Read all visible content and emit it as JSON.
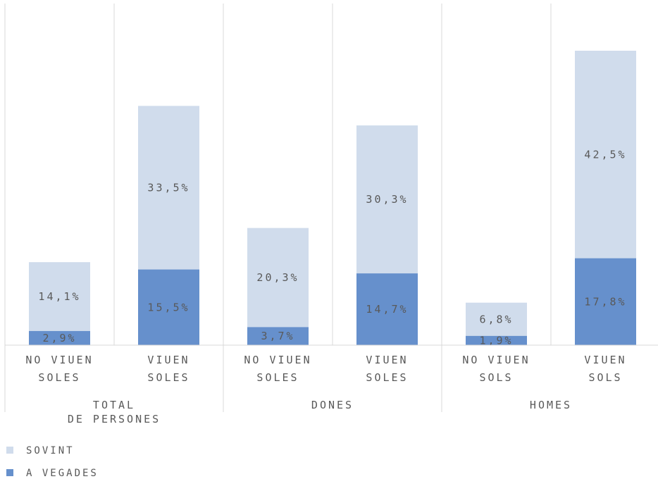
{
  "chart_data": {
    "type": "bar",
    "stacked": true,
    "groups": [
      {
        "label_lines": [
          "TOTAL",
          "DE PERSONES"
        ],
        "categories": [
          {
            "label_lines": [
              "NO VIUEN",
              "SOLES"
            ],
            "a_vegades": 2.9,
            "sovint": 14.1,
            "a_vegades_label": "2,9%",
            "sovint_label": "14,1%"
          },
          {
            "label_lines": [
              "VIUEN",
              "SOLES"
            ],
            "a_vegades": 15.5,
            "sovint": 33.5,
            "a_vegades_label": "15,5%",
            "sovint_label": "33,5%"
          }
        ]
      },
      {
        "label_lines": [
          "DONES"
        ],
        "categories": [
          {
            "label_lines": [
              "NO VIUEN",
              "SOLES"
            ],
            "a_vegades": 3.7,
            "sovint": 20.3,
            "a_vegades_label": "3,7%",
            "sovint_label": "20,3%"
          },
          {
            "label_lines": [
              "VIUEN",
              "SOLES"
            ],
            "a_vegades": 14.7,
            "sovint": 30.3,
            "a_vegades_label": "14,7%",
            "sovint_label": "30,3%"
          }
        ]
      },
      {
        "label_lines": [
          "HOMES"
        ],
        "categories": [
          {
            "label_lines": [
              "NO VIUEN",
              "SOLS"
            ],
            "a_vegades": 1.9,
            "sovint": 6.8,
            "a_vegades_label": "1,9%",
            "sovint_label": "6,8%"
          },
          {
            "label_lines": [
              "VIUEN",
              "SOLS"
            ],
            "a_vegades": 17.8,
            "sovint": 42.5,
            "a_vegades_label": "17,8%",
            "sovint_label": "42,5%"
          }
        ]
      }
    ],
    "series": [
      {
        "key": "sovint",
        "name": "SOVINT",
        "color": "#d0dcec"
      },
      {
        "key": "a_vegades",
        "name": "A VEGADES",
        "color": "#6690cc"
      }
    ],
    "ylim": [
      0,
      70
    ],
    "grid": true,
    "legend_position": "bottom-left"
  }
}
